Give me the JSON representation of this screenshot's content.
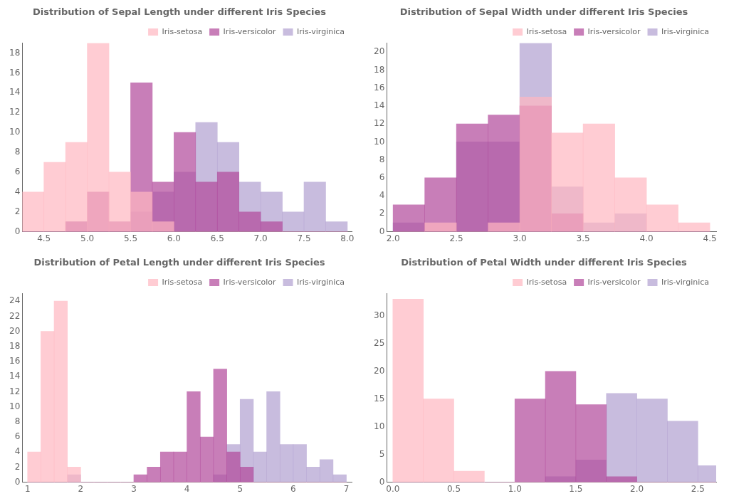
{
  "chart_data": [
    {
      "type": "histogram",
      "title": "Distribution of Sepal Length under different Iris Species",
      "bins": [
        4.25,
        4.5,
        4.75,
        5.0,
        5.25,
        5.5,
        5.75,
        6.0,
        6.25,
        6.5,
        6.75,
        7.0,
        7.25,
        7.5,
        7.75,
        8.0
      ],
      "series": [
        {
          "name": "Iris-setosa",
          "color": "#ffb6c1",
          "values": [
            4,
            7,
            9,
            19,
            6,
            4,
            1,
            0,
            0,
            0,
            0,
            0,
            0,
            0,
            0
          ]
        },
        {
          "name": "Iris-versicolor",
          "color": "#b0479a",
          "values": [
            0,
            0,
            1,
            4,
            1,
            15,
            5,
            10,
            5,
            6,
            2,
            1,
            0,
            0,
            0
          ]
        },
        {
          "name": "Iris-virginica",
          "color": "#b0a0d0",
          "values": [
            0,
            0,
            1,
            0,
            0,
            2,
            4,
            6,
            11,
            9,
            5,
            4,
            2,
            5,
            1
          ]
        }
      ],
      "xlim": [
        4.25,
        8.05
      ],
      "xticks": [
        4.5,
        {
          "value": 5.0,
          "label": "5.0"
        },
        5.5,
        {
          "value": 6.0,
          "label": "6.0"
        },
        6.5,
        {
          "value": 7.0,
          "label": "7.0"
        },
        7.5,
        {
          "value": 8.0,
          "label": "8.0"
        }
      ],
      "ylim": [
        0,
        19
      ],
      "yticks": [
        0,
        2,
        4,
        6,
        8,
        10,
        12,
        14,
        16,
        18
      ],
      "grid": false,
      "legend": "upper right"
    },
    {
      "type": "histogram",
      "title": "Distribution of Sepal Width under different Iris Species",
      "bins": [
        2.0,
        2.25,
        2.5,
        2.75,
        3.0,
        3.25,
        3.5,
        3.75,
        4.0,
        4.25,
        4.5
      ],
      "series": [
        {
          "name": "Iris-setosa",
          "color": "#ffb6c1",
          "values": [
            0,
            1,
            0,
            1,
            15,
            11,
            12,
            6,
            3,
            1
          ]
        },
        {
          "name": "Iris-versicolor",
          "color": "#b0479a",
          "values": [
            3,
            6,
            12,
            13,
            14,
            2,
            0,
            0,
            0,
            0
          ]
        },
        {
          "name": "Iris-virginica",
          "color": "#b0a0d0",
          "values": [
            1,
            0,
            10,
            10,
            21,
            5,
            1,
            2,
            0,
            0
          ]
        }
      ],
      "xlim": [
        1.95,
        4.55
      ],
      "xticks": [
        {
          "value": 2.0,
          "label": "2.0"
        },
        2.5,
        {
          "value": 3.0,
          "label": "3.0"
        },
        3.5,
        {
          "value": 4.0,
          "label": "4.0"
        },
        4.5
      ],
      "ylim": [
        0,
        21
      ],
      "yticks": [
        0,
        2,
        4,
        6,
        8,
        10,
        12,
        14,
        16,
        18,
        20
      ],
      "grid": false,
      "legend": "upper right"
    },
    {
      "type": "histogram",
      "title": "Distribution of Petal Length under different Iris Species",
      "bins": [
        1.0,
        1.25,
        1.5,
        1.75,
        2.0,
        2.25,
        2.5,
        2.75,
        3.0,
        3.25,
        3.5,
        3.75,
        4.0,
        4.25,
        4.5,
        4.75,
        5.0,
        5.25,
        5.5,
        5.75,
        6.0,
        6.25,
        6.5,
        6.75,
        7.0
      ],
      "series": [
        {
          "name": "Iris-setosa",
          "color": "#ffb6c1",
          "values": [
            4,
            20,
            24,
            2,
            0,
            0,
            0,
            0,
            0,
            0,
            0,
            0,
            0,
            0,
            0,
            0,
            0,
            0,
            0,
            0,
            0,
            0,
            0,
            0
          ]
        },
        {
          "name": "Iris-versicolor",
          "color": "#b0479a",
          "values": [
            0,
            0,
            0,
            0,
            0,
            0,
            0,
            0,
            1,
            2,
            4,
            4,
            12,
            6,
            15,
            4,
            2,
            0,
            0,
            0,
            0,
            0,
            0,
            0
          ]
        },
        {
          "name": "Iris-virginica",
          "color": "#b0a0d0",
          "values": [
            0,
            0,
            0,
            1,
            0,
            0,
            0,
            0,
            0,
            0,
            0,
            0,
            0,
            0,
            1,
            5,
            11,
            4,
            12,
            5,
            5,
            2,
            3,
            1
          ]
        }
      ],
      "xlim": [
        0.9,
        7.1
      ],
      "xticks": [
        1,
        2,
        3,
        4,
        5,
        6,
        7
      ],
      "ylim": [
        0,
        25
      ],
      "yticks": [
        0,
        2,
        4,
        6,
        8,
        10,
        12,
        14,
        16,
        18,
        20,
        22,
        24
      ],
      "grid": false,
      "legend": "upper right"
    },
    {
      "type": "histogram",
      "title": "Distribution of Petal Width under different Iris Species",
      "bins": [
        0.0,
        0.25,
        0.5,
        0.75,
        1.0,
        1.25,
        1.5,
        1.75,
        2.0,
        2.25,
        2.5,
        2.75
      ],
      "series": [
        {
          "name": "Iris-setosa",
          "color": "#ffb6c1",
          "values": [
            33,
            15,
            2,
            0,
            0,
            0,
            0,
            0,
            0,
            0,
            0
          ]
        },
        {
          "name": "Iris-versicolor",
          "color": "#b0479a",
          "values": [
            0,
            0,
            0,
            0,
            15,
            20,
            14,
            1,
            0,
            0,
            0
          ]
        },
        {
          "name": "Iris-virginica",
          "color": "#b0a0d0",
          "values": [
            0,
            0,
            0,
            0,
            0,
            1,
            4,
            16,
            15,
            11,
            3
          ]
        }
      ],
      "xlim": [
        -0.05,
        2.65
      ],
      "xticks": [
        {
          "value": 0.0,
          "label": "0.0"
        },
        0.5,
        {
          "value": 1.0,
          "label": "1.0"
        },
        1.5,
        {
          "value": 2.0,
          "label": "2.0"
        },
        2.5
      ],
      "ylim": [
        0,
        34
      ],
      "yticks": [
        0,
        5,
        10,
        15,
        20,
        25,
        30
      ],
      "grid": false,
      "legend": "upper right"
    }
  ]
}
